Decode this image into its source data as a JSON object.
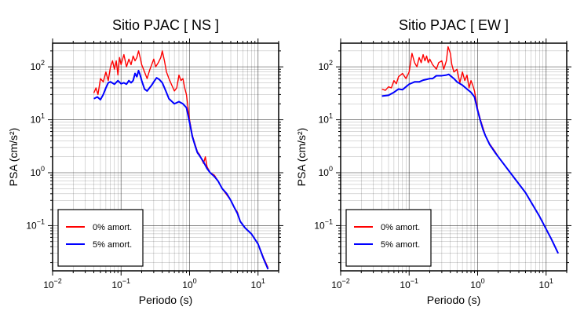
{
  "chart_data": [
    {
      "type": "line",
      "title": "Sitio PJAC [ NS ]",
      "xlabel": "Periodo (s)",
      "ylabel": "PSA (cm/s²)",
      "x_scale": "log",
      "y_scale": "log",
      "xlim": [
        0.01,
        20
      ],
      "ylim": [
        0.014,
        280
      ],
      "x_ticks": [
        {
          "value": 0.01,
          "base": "10",
          "exp": "−2"
        },
        {
          "value": 0.1,
          "base": "10",
          "exp": "−1"
        },
        {
          "value": 1,
          "base": "10",
          "exp": "0"
        },
        {
          "value": 10,
          "base": "10",
          "exp": "1"
        }
      ],
      "y_ticks": [
        {
          "value": 0.1,
          "base": "10",
          "exp": "−1"
        },
        {
          "value": 1,
          "base": "10",
          "exp": "0"
        },
        {
          "value": 10,
          "base": "10",
          "exp": "1"
        },
        {
          "value": 100,
          "base": "10",
          "exp": "2"
        }
      ],
      "grid": true,
      "legend": "bottom-left",
      "series": [
        {
          "name": "0% amort.",
          "color": "#ff0000",
          "points": [
            [
              0.04,
              32
            ],
            [
              0.043,
              40
            ],
            [
              0.046,
              30
            ],
            [
              0.05,
              60
            ],
            [
              0.055,
              52
            ],
            [
              0.06,
              80
            ],
            [
              0.065,
              55
            ],
            [
              0.07,
              100
            ],
            [
              0.075,
              130
            ],
            [
              0.08,
              90
            ],
            [
              0.085,
              130
            ],
            [
              0.09,
              70
            ],
            [
              0.095,
              150
            ],
            [
              0.1,
              110
            ],
            [
              0.11,
              170
            ],
            [
              0.12,
              100
            ],
            [
              0.13,
              140
            ],
            [
              0.14,
              110
            ],
            [
              0.15,
              160
            ],
            [
              0.16,
              130
            ],
            [
              0.17,
              150
            ],
            [
              0.18,
              200
            ],
            [
              0.19,
              150
            ],
            [
              0.2,
              110
            ],
            [
              0.22,
              80
            ],
            [
              0.24,
              60
            ],
            [
              0.26,
              85
            ],
            [
              0.28,
              110
            ],
            [
              0.3,
              140
            ],
            [
              0.32,
              100
            ],
            [
              0.35,
              120
            ],
            [
              0.38,
              150
            ],
            [
              0.4,
              200
            ],
            [
              0.43,
              130
            ],
            [
              0.46,
              80
            ],
            [
              0.5,
              60
            ],
            [
              0.55,
              45
            ],
            [
              0.6,
              35
            ],
            [
              0.65,
              40
            ],
            [
              0.7,
              70
            ],
            [
              0.75,
              55
            ],
            [
              0.8,
              60
            ],
            [
              0.85,
              40
            ],
            [
              0.9,
              30
            ],
            [
              1.0,
              10
            ],
            [
              1.1,
              5
            ],
            [
              1.2,
              3.5
            ],
            [
              1.3,
              2.5
            ],
            [
              1.4,
              2.2
            ],
            [
              1.6,
              1.5
            ],
            [
              1.7,
              2.0
            ],
            [
              1.8,
              1.3
            ],
            [
              2.0,
              1.0
            ],
            [
              2.3,
              0.9
            ],
            [
              2.6,
              0.7
            ],
            [
              3.0,
              0.5
            ],
            [
              3.5,
              0.38
            ],
            [
              4.0,
              0.3
            ],
            [
              4.5,
              0.22
            ],
            [
              5.0,
              0.18
            ],
            [
              5.5,
              0.12
            ],
            [
              6.5,
              0.09
            ],
            [
              8.0,
              0.07
            ],
            [
              10,
              0.045
            ],
            [
              12,
              0.025
            ],
            [
              14,
              0.016
            ]
          ]
        },
        {
          "name": "5% amort.",
          "color": "#0000ff",
          "points": [
            [
              0.04,
              25
            ],
            [
              0.045,
              27
            ],
            [
              0.05,
              24
            ],
            [
              0.055,
              30
            ],
            [
              0.06,
              40
            ],
            [
              0.065,
              50
            ],
            [
              0.07,
              52
            ],
            [
              0.08,
              47
            ],
            [
              0.09,
              55
            ],
            [
              0.1,
              48
            ],
            [
              0.11,
              50
            ],
            [
              0.12,
              47
            ],
            [
              0.13,
              55
            ],
            [
              0.14,
              50
            ],
            [
              0.15,
              55
            ],
            [
              0.16,
              75
            ],
            [
              0.17,
              65
            ],
            [
              0.18,
              85
            ],
            [
              0.19,
              70
            ],
            [
              0.2,
              55
            ],
            [
              0.22,
              38
            ],
            [
              0.24,
              35
            ],
            [
              0.26,
              40
            ],
            [
              0.28,
              45
            ],
            [
              0.3,
              52
            ],
            [
              0.33,
              62
            ],
            [
              0.36,
              58
            ],
            [
              0.4,
              50
            ],
            [
              0.45,
              35
            ],
            [
              0.5,
              25
            ],
            [
              0.6,
              20
            ],
            [
              0.7,
              22
            ],
            [
              0.8,
              20
            ],
            [
              0.9,
              17
            ],
            [
              1.0,
              9
            ],
            [
              1.1,
              4.8
            ],
            [
              1.2,
              3.3
            ],
            [
              1.3,
              2.4
            ],
            [
              1.4,
              2.1
            ],
            [
              1.6,
              1.6
            ],
            [
              1.8,
              1.2
            ],
            [
              2.0,
              1.0
            ],
            [
              2.3,
              0.85
            ],
            [
              2.6,
              0.7
            ],
            [
              3.0,
              0.5
            ],
            [
              3.5,
              0.4
            ],
            [
              4.0,
              0.3
            ],
            [
              4.5,
              0.22
            ],
            [
              5.0,
              0.17
            ],
            [
              5.5,
              0.12
            ],
            [
              6.5,
              0.09
            ],
            [
              8.0,
              0.07
            ],
            [
              10,
              0.045
            ],
            [
              12,
              0.024
            ],
            [
              14,
              0.015
            ]
          ]
        }
      ]
    },
    {
      "type": "line",
      "title": "Sitio PJAC [ EW ]",
      "xlabel": "Periodo (s)",
      "ylabel": "PSA (cm/s²)",
      "x_scale": "log",
      "y_scale": "log",
      "xlim": [
        0.01,
        20
      ],
      "ylim": [
        0.014,
        280
      ],
      "x_ticks": [
        {
          "value": 0.01,
          "base": "10",
          "exp": "−2"
        },
        {
          "value": 0.1,
          "base": "10",
          "exp": "−1"
        },
        {
          "value": 1,
          "base": "10",
          "exp": "0"
        },
        {
          "value": 10,
          "base": "10",
          "exp": "1"
        }
      ],
      "y_ticks": [
        {
          "value": 0.1,
          "base": "10",
          "exp": "−1"
        },
        {
          "value": 1,
          "base": "10",
          "exp": "0"
        },
        {
          "value": 10,
          "base": "10",
          "exp": "1"
        },
        {
          "value": 100,
          "base": "10",
          "exp": "2"
        }
      ],
      "grid": true,
      "legend": "bottom-left",
      "series": [
        {
          "name": "0% amort.",
          "color": "#ff0000",
          "points": [
            [
              0.04,
              38
            ],
            [
              0.045,
              36
            ],
            [
              0.05,
              42
            ],
            [
              0.055,
              40
            ],
            [
              0.06,
              55
            ],
            [
              0.065,
              48
            ],
            [
              0.07,
              65
            ],
            [
              0.08,
              75
            ],
            [
              0.09,
              60
            ],
            [
              0.1,
              80
            ],
            [
              0.11,
              180
            ],
            [
              0.12,
              120
            ],
            [
              0.13,
              100
            ],
            [
              0.14,
              150
            ],
            [
              0.15,
              120
            ],
            [
              0.16,
              170
            ],
            [
              0.17,
              130
            ],
            [
              0.18,
              160
            ],
            [
              0.19,
              120
            ],
            [
              0.2,
              140
            ],
            [
              0.22,
              110
            ],
            [
              0.25,
              90
            ],
            [
              0.27,
              120
            ],
            [
              0.3,
              130
            ],
            [
              0.32,
              90
            ],
            [
              0.35,
              130
            ],
            [
              0.37,
              240
            ],
            [
              0.4,
              180
            ],
            [
              0.42,
              110
            ],
            [
              0.45,
              80
            ],
            [
              0.5,
              90
            ],
            [
              0.55,
              50
            ],
            [
              0.6,
              80
            ],
            [
              0.65,
              55
            ],
            [
              0.7,
              70
            ],
            [
              0.75,
              40
            ],
            [
              0.8,
              55
            ],
            [
              0.85,
              45
            ],
            [
              0.9,
              35
            ],
            [
              1.0,
              16
            ],
            [
              1.1,
              10
            ],
            [
              1.2,
              7
            ],
            [
              1.3,
              5
            ],
            [
              1.5,
              3.5
            ],
            [
              1.8,
              2.5
            ],
            [
              2.0,
              2.0
            ],
            [
              3,
              1.0
            ],
            [
              5,
              0.42
            ],
            [
              8,
              0.15
            ],
            [
              12,
              0.055
            ],
            [
              15,
              0.03
            ]
          ]
        },
        {
          "name": "5% amort.",
          "color": "#0000ff",
          "points": [
            [
              0.04,
              28
            ],
            [
              0.05,
              29
            ],
            [
              0.06,
              33
            ],
            [
              0.07,
              38
            ],
            [
              0.08,
              37
            ],
            [
              0.09,
              42
            ],
            [
              0.1,
              47
            ],
            [
              0.12,
              52
            ],
            [
              0.14,
              52
            ],
            [
              0.16,
              56
            ],
            [
              0.18,
              58
            ],
            [
              0.2,
              60
            ],
            [
              0.22,
              60
            ],
            [
              0.25,
              68
            ],
            [
              0.3,
              68
            ],
            [
              0.35,
              70
            ],
            [
              0.38,
              72
            ],
            [
              0.4,
              68
            ],
            [
              0.45,
              60
            ],
            [
              0.5,
              52
            ],
            [
              0.6,
              45
            ],
            [
              0.7,
              38
            ],
            [
              0.8,
              33
            ],
            [
              0.9,
              27
            ],
            [
              1.0,
              15
            ],
            [
              1.1,
              9.5
            ],
            [
              1.2,
              6.5
            ],
            [
              1.3,
              5
            ],
            [
              1.5,
              3.4
            ],
            [
              1.8,
              2.4
            ],
            [
              2.0,
              2.0
            ],
            [
              3,
              1.0
            ],
            [
              5,
              0.42
            ],
            [
              8,
              0.15
            ],
            [
              12,
              0.055
            ],
            [
              15,
              0.03
            ]
          ]
        }
      ]
    }
  ]
}
